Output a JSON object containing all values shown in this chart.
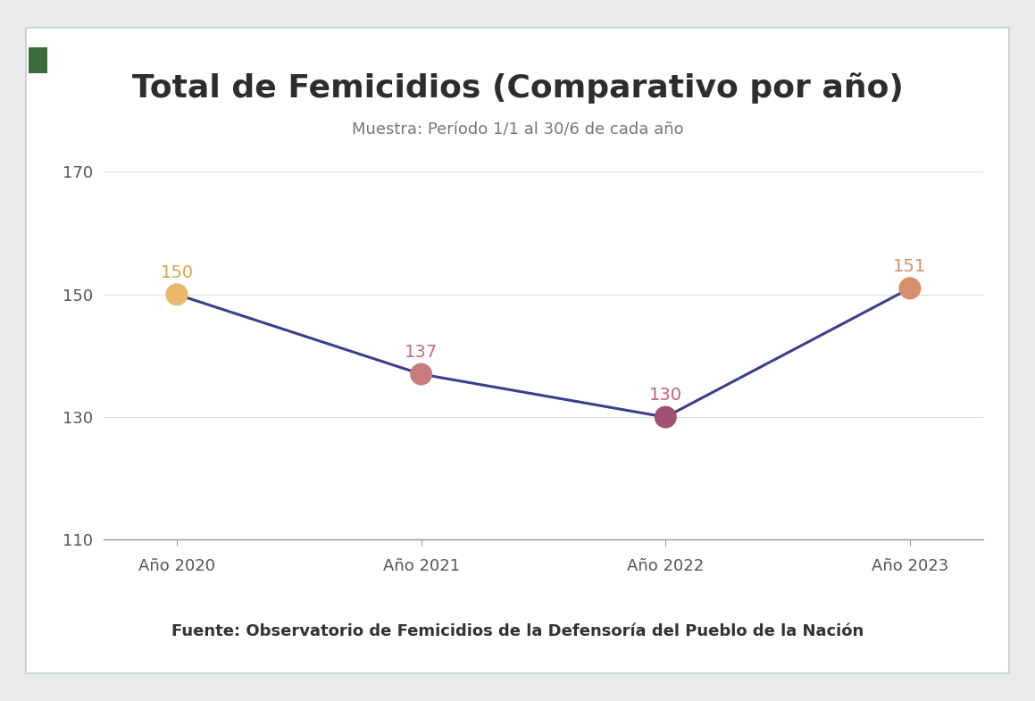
{
  "title": "Total de Femicidios (Comparativo por año)",
  "subtitle": "Muestra: Período 1/1 al 30/6 de cada año",
  "source": "Fuente: Observatorio de Femicidios de la Defensoría del Pueblo de la Nación",
  "categories": [
    "Año 2020",
    "Año 2021",
    "Año 2022",
    "Año 2023"
  ],
  "values": [
    150,
    137,
    130,
    151
  ],
  "marker_colors": [
    "#E8B86D",
    "#C97A7A",
    "#A05070",
    "#D4906A"
  ],
  "label_colors": [
    "#D4A843",
    "#C96A7A",
    "#C06070",
    "#D4906A"
  ],
  "line_color": "#3B3F8C",
  "ylim": [
    110,
    170
  ],
  "yticks": [
    110,
    130,
    150,
    170
  ],
  "background_color": "#FFFFFF",
  "outer_background": "#EBEBEB",
  "card_border_color": "#C8D8C8",
  "small_square_color": "#3A6B3A",
  "title_fontsize": 26,
  "subtitle_fontsize": 13,
  "source_fontsize": 13,
  "tick_fontsize": 13,
  "label_fontsize": 14,
  "marker_size": 18
}
